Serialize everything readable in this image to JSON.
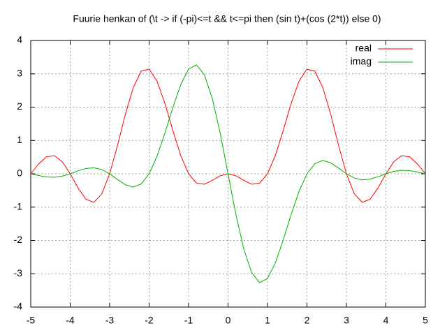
{
  "chart_data": {
    "type": "line",
    "title": "Fuurie henkan of (\\t -> if (-pi)<=t && t<=pi then (sin t)+(cos (2*t)) else 0)",
    "x": [
      -5,
      -4.8,
      -4.6,
      -4.4,
      -4.2,
      -4,
      -3.8,
      -3.6,
      -3.4,
      -3.2,
      -3,
      -2.8,
      -2.6,
      -2.4,
      -2.2,
      -2,
      -1.8,
      -1.6,
      -1.4,
      -1.2,
      -1,
      -0.8,
      -0.6,
      -0.4,
      -0.2,
      0,
      0.2,
      0.4,
      0.6,
      0.8,
      1,
      1.2,
      1.4,
      1.6,
      1.8,
      2,
      2.2,
      2.4,
      2.6,
      2.8,
      3,
      3.2,
      3.4,
      3.6,
      3.8,
      4,
      4.2,
      4.4,
      4.6,
      4.8,
      5
    ],
    "series": [
      {
        "name": "real",
        "color": "#ff0000",
        "values": [
          0,
          0.296,
          0.51,
          0.545,
          0.362,
          0,
          -0.428,
          -0.764,
          -0.856,
          -0.603,
          0,
          0.857,
          1.792,
          2.594,
          3.079,
          3.142,
          2.784,
          2.114,
          1.305,
          0.551,
          0,
          -0.28,
          -0.314,
          -0.198,
          -0.059,
          0,
          -0.059,
          -0.198,
          -0.314,
          -0.28,
          0,
          0.551,
          1.305,
          2.114,
          2.784,
          3.142,
          3.079,
          2.594,
          1.792,
          0.857,
          0,
          -0.603,
          -0.856,
          -0.764,
          -0.428,
          0,
          0.362,
          0.545,
          0.51,
          0.296,
          0
        ]
      },
      {
        "name": "imag",
        "color": "#00b000",
        "values": [
          0,
          -0.053,
          -0.094,
          -0.104,
          -0.071,
          0,
          0.088,
          0.159,
          0.18,
          0.127,
          0,
          -0.172,
          -0.33,
          -0.4,
          -0.306,
          0,
          0.525,
          1.219,
          1.982,
          2.672,
          3.142,
          3.266,
          2.972,
          2.265,
          1.225,
          0,
          -1.225,
          -2.265,
          -2.972,
          -3.266,
          -3.142,
          -2.672,
          -1.982,
          -1.219,
          -0.525,
          0,
          0.306,
          0.4,
          0.33,
          0.172,
          0,
          -0.127,
          -0.18,
          -0.159,
          -0.088,
          0,
          0.071,
          0.104,
          0.094,
          0.053,
          0
        ]
      }
    ],
    "xlim": [
      -5,
      5
    ],
    "ylim": [
      -4,
      4
    ],
    "xticks": [
      -5,
      -4,
      -3,
      -2,
      -1,
      0,
      1,
      2,
      3,
      4,
      5
    ],
    "yticks": [
      -4,
      -3,
      -2,
      -1,
      0,
      1,
      2,
      3,
      4
    ],
    "grid": true,
    "legend": "top-right"
  }
}
